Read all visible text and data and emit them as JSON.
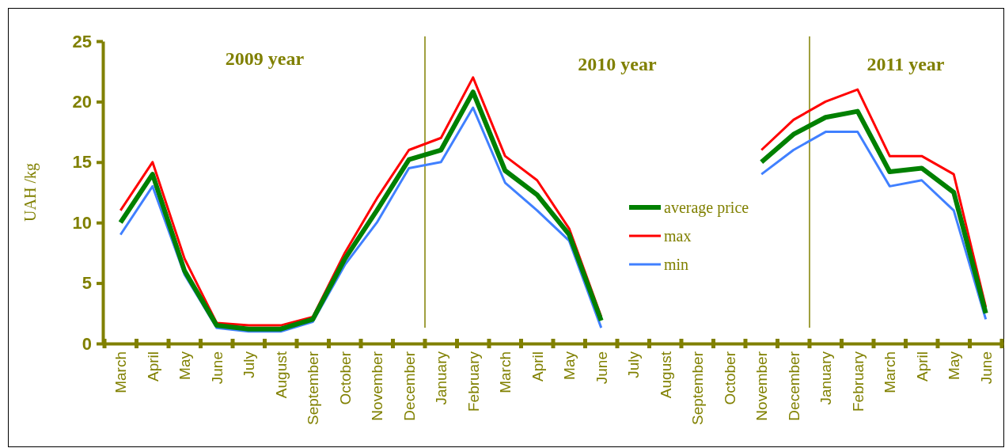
{
  "chart_data": {
    "type": "line",
    "ylabel": "UAH /kg",
    "categories": [
      "March",
      "April",
      "May",
      "June",
      "July",
      "August",
      "September",
      "October",
      "November",
      "December",
      "January",
      "February",
      "March",
      "April",
      "May",
      "June",
      "July",
      "August",
      "September",
      "October",
      "November",
      "December",
      "January",
      "February",
      "March",
      "April",
      "May",
      "June"
    ],
    "series": [
      {
        "name": "average price",
        "color": "#008000",
        "values": [
          10,
          14,
          6,
          1.5,
          1.2,
          1.2,
          2,
          7,
          11,
          15.2,
          16,
          20.8,
          14.3,
          12.3,
          9,
          1.9,
          null,
          null,
          null,
          null,
          15,
          17.3,
          18.7,
          19.2,
          14.2,
          14.5,
          12.5,
          2.5
        ]
      },
      {
        "name": "max",
        "color": "#ff0000",
        "values": [
          11,
          15,
          7,
          1.7,
          1.5,
          1.5,
          2.2,
          7.5,
          12,
          16,
          17,
          22,
          15.5,
          13.5,
          9.5,
          2.2,
          null,
          null,
          null,
          null,
          16,
          18.5,
          20,
          21,
          15.5,
          15.5,
          14,
          3
        ]
      },
      {
        "name": "min",
        "color": "#4080ff",
        "values": [
          9,
          13,
          5.7,
          1.3,
          1,
          1,
          1.8,
          6.5,
          10,
          14.5,
          15,
          19.5,
          13.3,
          11,
          8.5,
          1.3,
          null,
          null,
          null,
          null,
          14,
          16,
          17.5,
          17.5,
          13,
          13.5,
          11,
          2
        ]
      }
    ],
    "ylim": [
      0,
      25
    ],
    "yticks": [
      0,
      5,
      10,
      15,
      20,
      25
    ],
    "annotations": [
      "2009 year",
      "2010 year",
      "2011 year"
    ],
    "legend": "right",
    "grid": false,
    "marker": "none",
    "line_style": "solid"
  }
}
